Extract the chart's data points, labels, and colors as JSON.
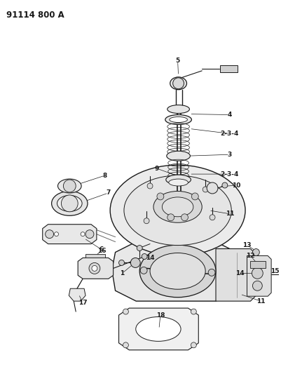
{
  "title": "91114 800 A",
  "bg_color": "#ffffff",
  "lc": "#1a1a1a",
  "title_fontsize": 8.5,
  "label_fontsize": 6.5,
  "fig_width": 4.01,
  "fig_height": 5.33,
  "dpi": 100
}
